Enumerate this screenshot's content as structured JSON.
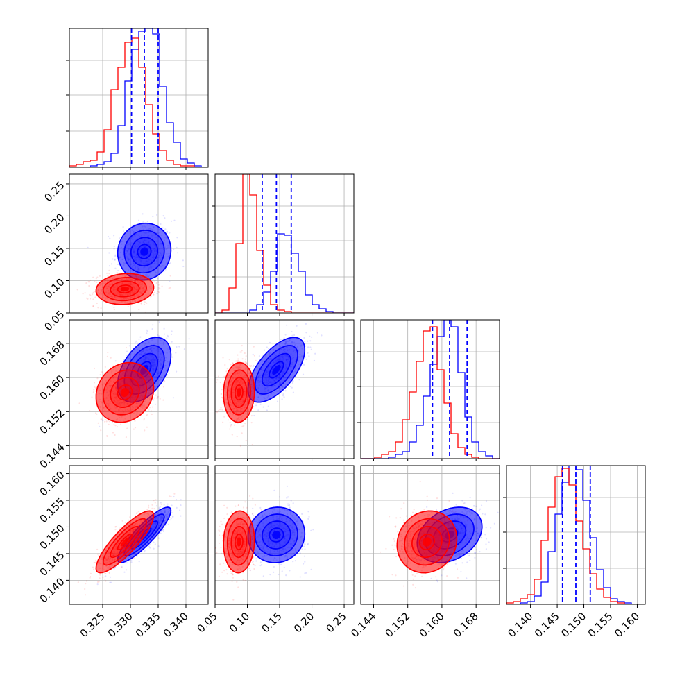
{
  "chart_data": {
    "type": "corner",
    "title": "",
    "parameters": [
      {
        "range": [
          0.319,
          0.344
        ],
        "ticks": [
          0.325,
          0.33,
          0.335,
          0.34
        ],
        "tick_labels": [
          "0.325",
          "0.330",
          "0.335",
          "0.340"
        ]
      },
      {
        "range": [
          0.05,
          0.265
        ],
        "ticks": [
          0.05,
          0.1,
          0.15,
          0.2,
          0.25
        ],
        "tick_labels": [
          "0.05",
          "0.10",
          "0.15",
          "0.20",
          "0.25"
        ]
      },
      {
        "range": [
          0.141,
          0.1735
        ],
        "ticks": [
          0.144,
          0.152,
          0.16,
          0.168
        ],
        "tick_labels": [
          "0.144",
          "0.152",
          "0.160",
          "0.168"
        ]
      },
      {
        "range": [
          0.1355,
          0.1615
        ],
        "ticks": [
          0.14,
          0.145,
          0.15,
          0.155,
          0.16
        ],
        "tick_labels": [
          "0.140",
          "0.145",
          "0.150",
          "0.155",
          "0.160"
        ]
      }
    ],
    "grid": true,
    "series": [
      {
        "color": "#0000ff",
        "means": [
          0.3325,
          0.145,
          0.1618,
          0.1485
        ],
        "sigmas": [
          0.0024,
          0.022,
          0.0038,
          0.0026
        ],
        "correlations": [
          [
            1,
            0.05,
            0.45,
            0.88
          ],
          [
            0.05,
            1,
            0.62,
            0.05
          ],
          [
            0.45,
            0.62,
            1,
            0.3
          ],
          [
            0.88,
            0.05,
            0.3,
            1
          ]
        ]
      },
      {
        "color": "#ff0000",
        "means": [
          0.329,
          0.087,
          0.1565,
          0.1472
        ],
        "sigmas": [
          0.0026,
          0.012,
          0.0035,
          0.0029
        ],
        "correlations": [
          [
            1,
            0.1,
            0.15,
            0.85
          ],
          [
            0.1,
            1,
            0.05,
            0.05
          ],
          [
            0.15,
            0.05,
            1,
            0.1
          ],
          [
            0.85,
            0.05,
            0.1,
            1
          ]
        ]
      }
    ],
    "quantile_lines": {
      "color": "#0000ff",
      "style": "dashed",
      "values": [
        [
          0.3302,
          0.3325,
          0.335
        ],
        [
          0.123,
          0.145,
          0.168
        ],
        [
          0.1578,
          0.1618,
          0.1659
        ],
        [
          0.146,
          0.1485,
          0.1512
        ]
      ]
    },
    "histograms": [
      {
        "edges": [
          0.319,
          0.32025,
          0.3215,
          0.32275,
          0.324,
          0.32525,
          0.3265,
          0.32775,
          0.329,
          0.33025,
          0.3315,
          0.33275,
          0.334,
          0.33525,
          0.3365,
          0.33775,
          0.339,
          0.34025,
          0.3415,
          0.34275,
          0.344
        ],
        "counts": {
          "blue": [
            0,
            0,
            0,
            1,
            2,
            4,
            10,
            30,
            62,
            85,
            98,
            100,
            96,
            58,
            32,
            18,
            6,
            3,
            1,
            0
          ],
          "red": [
            1,
            2,
            4,
            5,
            11,
            27,
            56,
            72,
            90,
            93,
            72,
            45,
            24,
            12,
            5,
            2,
            1,
            1,
            0,
            0
          ]
        }
      },
      {
        "edges": [
          0.05,
          0.06075,
          0.0715,
          0.08225,
          0.093,
          0.10375,
          0.1145,
          0.12525,
          0.136,
          0.14675,
          0.1575,
          0.16825,
          0.179,
          0.18975,
          0.2005,
          0.21125,
          0.222,
          0.23275,
          0.2435,
          0.25425,
          0.265
        ],
        "counts": {
          "blue": [
            0,
            0,
            0,
            0,
            0,
            2,
            6,
            15,
            30,
            57,
            56,
            43,
            30,
            13,
            6,
            3,
            1,
            0,
            0,
            0
          ],
          "red": [
            0,
            2,
            18,
            50,
            100,
            85,
            45,
            20,
            6,
            2,
            1,
            0,
            0,
            0,
            0,
            0,
            0,
            0,
            0,
            0
          ]
        }
      },
      {
        "edges": [
          0.141,
          0.14263,
          0.14425,
          0.14588,
          0.1475,
          0.14913,
          0.15075,
          0.15238,
          0.154,
          0.15563,
          0.15725,
          0.15888,
          0.1605,
          0.16213,
          0.16375,
          0.16538,
          0.167,
          0.16863,
          0.17025,
          0.17188,
          0.1735
        ],
        "counts": {
          "blue": [
            0,
            0,
            0,
            0,
            1,
            3,
            5,
            12,
            24,
            45,
            68,
            88,
            100,
            95,
            62,
            30,
            12,
            5,
            2,
            0
          ],
          "red": [
            0,
            0,
            1,
            3,
            5,
            12,
            28,
            48,
            70,
            92,
            95,
            64,
            40,
            18,
            8,
            3,
            1,
            0,
            0,
            0
          ]
        }
      },
      {
        "edges": [
          0.1355,
          0.1368,
          0.1381,
          0.1394,
          0.1407,
          0.142,
          0.1433,
          0.1446,
          0.1459,
          0.1472,
          0.1485,
          0.1498,
          0.1511,
          0.1524,
          0.1537,
          0.155,
          0.1563,
          0.1576,
          0.1589,
          0.1602,
          0.1615
        ],
        "counts": {
          "blue": [
            0,
            0,
            1,
            2,
            6,
            16,
            38,
            65,
            88,
            100,
            97,
            75,
            48,
            25,
            12,
            4,
            2,
            1,
            0,
            0
          ],
          "red": [
            1,
            2,
            4,
            7,
            18,
            46,
            70,
            92,
            98,
            86,
            60,
            40,
            22,
            11,
            5,
            2,
            1,
            0,
            0,
            0
          ]
        }
      }
    ],
    "contour_levels_sigma": [
      0.5,
      1.0,
      1.5,
      2.0
    ]
  }
}
